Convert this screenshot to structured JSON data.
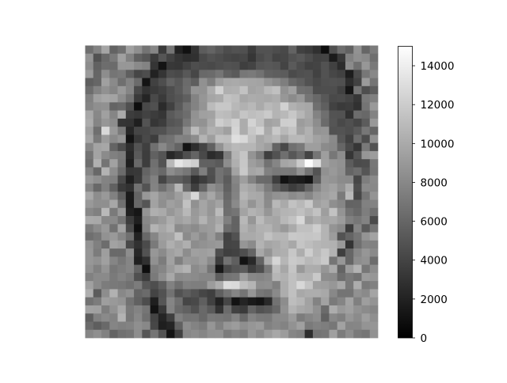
{
  "chart_data": {
    "type": "heatmap",
    "title": "",
    "xlabel": "",
    "ylabel": "",
    "axes_visible": false,
    "colormap": "gray",
    "colormap_colors": [
      "#000000",
      "#ffffff"
    ],
    "grid_size": [
      36,
      36
    ],
    "vmin": 0,
    "vmax": 15000,
    "colorbar": {
      "position": "right",
      "ticks": [
        0,
        2000,
        4000,
        6000,
        8000,
        10000,
        12000,
        14000
      ],
      "tick_labels": [
        "0",
        "2000",
        "4000",
        "6000",
        "8000",
        "10000",
        "12000",
        "14000"
      ]
    },
    "values": [
      [
        6500,
        7700,
        9700,
        5800,
        6600,
        9400,
        8400,
        6800,
        7900,
        3400,
        6900,
        2000,
        1000,
        3000,
        5400,
        5900,
        5200,
        4500,
        4800,
        4700,
        3500,
        4800,
        4800,
        4500,
        4300,
        5800,
        3800,
        3500,
        2800,
        800,
        4700,
        6400,
        5700,
        8600,
        6000,
        7300
      ],
      [
        8700,
        4800,
        6200,
        7200,
        9400,
        7600,
        5700,
        5100,
        3500,
        5000,
        3900,
        3100,
        2700,
        2800,
        4300,
        4800,
        4500,
        4200,
        4000,
        4200,
        3200,
        4400,
        4900,
        4000,
        4200,
        4800,
        5200,
        4500,
        3900,
        4000,
        1600,
        3300,
        7600,
        8400,
        8100,
        6500
      ],
      [
        8300,
        5700,
        6400,
        6300,
        8900,
        8900,
        8100,
        7700,
        3100,
        1200,
        3300,
        3200,
        3900,
        4600,
        4400,
        4300,
        4600,
        4800,
        4700,
        3700,
        4000,
        5000,
        5200,
        5000,
        4000,
        5300,
        4500,
        3900,
        4000,
        4800,
        3800,
        2600,
        8200,
        6600,
        8900,
        7100
      ],
      [
        9100,
        6000,
        8300,
        6900,
        7100,
        5600,
        4100,
        4500,
        2000,
        3100,
        4500,
        4300,
        5200,
        4200,
        6200,
        6300,
        6900,
        5700,
        5300,
        7000,
        7200,
        6700,
        5700,
        5500,
        5400,
        4400,
        4700,
        4800,
        3900,
        4800,
        4200,
        3800,
        1700,
        4400,
        7000,
        8000
      ],
      [
        5600,
        6000,
        9400,
        8100,
        6500,
        7700,
        6300,
        1200,
        3800,
        4600,
        5800,
        5200,
        6300,
        5500,
        8500,
        7400,
        9300,
        9900,
        10000,
        9800,
        9700,
        9600,
        8700,
        8100,
        7400,
        6100,
        5600,
        4800,
        4300,
        4700,
        4800,
        4700,
        2700,
        3900,
        9100,
        6900
      ],
      [
        6400,
        7700,
        8500,
        7800,
        9000,
        7800,
        4300,
        3000,
        3400,
        3800,
        4600,
        5300,
        6400,
        8700,
        8600,
        10100,
        12300,
        10300,
        10400,
        11400,
        9600,
        9800,
        10800,
        11300,
        8600,
        9400,
        6600,
        6400,
        4500,
        4600,
        4600,
        3900,
        1300,
        6800,
        4600,
        5500
      ],
      [
        7600,
        9400,
        9800,
        9600,
        8300,
        6800,
        3400,
        2100,
        4300,
        3400,
        4600,
        5000,
        5600,
        7700,
        8800,
        9700,
        10000,
        11400,
        11100,
        9800,
        10100,
        10000,
        9900,
        10200,
        8900,
        8200,
        8900,
        6900,
        6100,
        5200,
        4300,
        4400,
        4000,
        3200,
        7100,
        7500
      ],
      [
        7800,
        8400,
        8500,
        5900,
        6200,
        4700,
        800,
        4300,
        4700,
        2500,
        3800,
        5300,
        6700,
        7700,
        8700,
        11000,
        11700,
        11700,
        10800,
        10400,
        10800,
        10000,
        10900,
        10500,
        12300,
        10400,
        10000,
        9800,
        6500,
        5600,
        3900,
        3400,
        3600,
        2900,
        6800,
        9000
      ],
      [
        9900,
        8000,
        9400,
        7800,
        10000,
        3600,
        3300,
        3900,
        3500,
        3200,
        5300,
        5900,
        6400,
        8600,
        9400,
        9500,
        11200,
        11000,
        10400,
        11600,
        11200,
        11400,
        11900,
        10600,
        10900,
        11700,
        10700,
        9800,
        7700,
        6500,
        4900,
        4800,
        2900,
        6400,
        6100,
        7700
      ],
      [
        10100,
        7800,
        8800,
        8300,
        3100,
        3000,
        1800,
        4900,
        3200,
        3600,
        5000,
        5300,
        7000,
        8700,
        8600,
        9900,
        12100,
        11500,
        12300,
        10100,
        12400,
        11300,
        9500,
        9800,
        12100,
        12200,
        9200,
        9600,
        8300,
        6300,
        5000,
        4300,
        4700,
        4100,
        5400,
        9000
      ],
      [
        9400,
        6500,
        12700,
        9000,
        7200,
        2300,
        4100,
        4200,
        4700,
        4800,
        5700,
        5800,
        8400,
        11000,
        9300,
        10400,
        10100,
        9400,
        12500,
        10100,
        11700,
        12400,
        10000,
        11800,
        10900,
        11500,
        9500,
        10400,
        8700,
        8800,
        4800,
        4900,
        4600,
        5300,
        7000,
        6000
      ],
      [
        9900,
        7200,
        9100,
        8100,
        8800,
        1200,
        3300,
        4300,
        3600,
        6400,
        6700,
        7700,
        7500,
        8300,
        10600,
        9300,
        11300,
        11200,
        13100,
        12700,
        11300,
        9800,
        10400,
        10900,
        9700,
        10800,
        10900,
        10300,
        9500,
        9100,
        8100,
        5100,
        3800,
        6400,
        4500,
        8500
      ],
      [
        8000,
        9600,
        9800,
        5900,
        4500,
        2700,
        4900,
        3700,
        6600,
        8000,
        6900,
        5900,
        1200,
        2700,
        4000,
        5700,
        8600,
        10300,
        10900,
        10700,
        10700,
        9900,
        9300,
        5900,
        4300,
        6600,
        7100,
        9300,
        9300,
        8200,
        8000,
        6000,
        4400,
        3200,
        7100,
        4900
      ],
      [
        6900,
        9600,
        8200,
        7500,
        7200,
        2300,
        5300,
        3600,
        5700,
        5000,
        2300,
        3100,
        4600,
        5900,
        4300,
        2600,
        3100,
        7400,
        10600,
        11600,
        8700,
        7300,
        3700,
        4800,
        6500,
        5100,
        6100,
        4000,
        6900,
        9300,
        7000,
        8300,
        3200,
        5000,
        8800,
        9200
      ],
      [
        6500,
        10400,
        6800,
        9500,
        7000,
        1800,
        6200,
        3600,
        6600,
        4900,
        10800,
        13500,
        12700,
        12100,
        5700,
        5700,
        5300,
        8300,
        10300,
        11700,
        9300,
        8700,
        6700,
        7800,
        9700,
        10000,
        11900,
        14800,
        13000,
        9400,
        8800,
        8500,
        5400,
        4400,
        4500,
        7000
      ],
      [
        7900,
        6100,
        10500,
        8300,
        6300,
        3200,
        3300,
        5900,
        6800,
        6200,
        8300,
        7600,
        7000,
        5300,
        7400,
        4700,
        6700,
        6100,
        9600,
        11800,
        9700,
        10000,
        7600,
        7100,
        7200,
        7100,
        8600,
        6800,
        4900,
        8500,
        9000,
        8400,
        5900,
        6400,
        5000,
        6900
      ],
      [
        9000,
        8400,
        7700,
        7500,
        4300,
        1800,
        3400,
        6300,
        7600,
        4100,
        5700,
        5600,
        4800,
        2800,
        3600,
        4500,
        6700,
        5400,
        7900,
        9300,
        7700,
        6300,
        6200,
        3700,
        1100,
        1800,
        1600,
        1100,
        5500,
        8900,
        8700,
        8200,
        8100,
        4100,
        7400,
        8100
      ],
      [
        7900,
        6100,
        7500,
        5700,
        3400,
        2900,
        6700,
        4900,
        7700,
        6600,
        7800,
        10700,
        6200,
        3700,
        5900,
        8400,
        7700,
        5700,
        7600,
        10200,
        9700,
        8800,
        7300,
        5500,
        4600,
        3600,
        4200,
        5900,
        7900,
        9100,
        9500,
        8600,
        10100,
        4600,
        8100,
        8000
      ],
      [
        9900,
        8300,
        9000,
        7600,
        5600,
        1600,
        5900,
        8900,
        9700,
        8600,
        8300,
        9300,
        10400,
        12600,
        8700,
        9800,
        8400,
        6100,
        7700,
        10700,
        10000,
        9900,
        8000,
        8600,
        8800,
        8200,
        8600,
        7900,
        9000,
        9400,
        9800,
        7200,
        10900,
        4200,
        6900,
        8700
      ],
      [
        9000,
        8400,
        8400,
        9800,
        6600,
        1500,
        6200,
        5000,
        9500,
        8400,
        9400,
        9000,
        11400,
        8500,
        9700,
        8900,
        9600,
        6400,
        8100,
        10200,
        8700,
        9900,
        8200,
        10800,
        10000,
        11400,
        10800,
        11800,
        9400,
        9900,
        8400,
        7900,
        5800,
        5900,
        7600,
        7700
      ],
      [
        8000,
        7500,
        10900,
        7200,
        9000,
        1900,
        1300,
        8700,
        10300,
        10000,
        8900,
        9600,
        10800,
        9000,
        9700,
        8800,
        11000,
        6500,
        6900,
        9600,
        10500,
        10100,
        8800,
        10100,
        10600,
        10700,
        11300,
        10600,
        11400,
        9300,
        11400,
        8700,
        6700,
        6100,
        7400,
        6500
      ],
      [
        10000,
        9900,
        8000,
        8100,
        6900,
        3500,
        1800,
        8000,
        8600,
        9100,
        10200,
        9400,
        9900,
        9100,
        10500,
        9200,
        9900,
        7500,
        5800,
        10800,
        8800,
        11000,
        9900,
        9700,
        10800,
        11400,
        12700,
        9600,
        10300,
        9700,
        9900,
        9200,
        7500,
        7000,
        7700,
        4400
      ],
      [
        7300,
        8200,
        9000,
        6700,
        9600,
        4400,
        900,
        7700,
        10500,
        9800,
        10500,
        8200,
        8600,
        8200,
        9000,
        9200,
        10400,
        6400,
        5800,
        10400,
        9700,
        10400,
        10500,
        9700,
        9000,
        10000,
        11300,
        11300,
        12100,
        10600,
        8700,
        8100,
        3600,
        7800,
        5300,
        6900
      ],
      [
        6500,
        7000,
        8600,
        9000,
        7900,
        6600,
        2000,
        6100,
        7900,
        9400,
        9600,
        11300,
        8200,
        9100,
        8200,
        9100,
        7600,
        3900,
        4800,
        10000,
        10000,
        10300,
        11400,
        10700,
        10700,
        11800,
        11700,
        11600,
        11700,
        10600,
        9200,
        4900,
        5900,
        6800,
        8700,
        9600
      ],
      [
        8700,
        7500,
        6400,
        9500,
        9200,
        4300,
        2900,
        4400,
        7200,
        9100,
        10300,
        9600,
        10300,
        8300,
        8600,
        8800,
        9000,
        4000,
        4100,
        8800,
        8200,
        10500,
        9700,
        10000,
        10500,
        9900,
        11600,
        11100,
        10700,
        10500,
        10400,
        9000,
        3000,
        6500,
        7700,
        7600
      ],
      [
        8900,
        7300,
        9300,
        6200,
        6200,
        8300,
        2300,
        4800,
        8900,
        8200,
        9400,
        9900,
        8300,
        9400,
        9300,
        9500,
        4600,
        3700,
        3900,
        4600,
        5900,
        9900,
        8700,
        10100,
        10300,
        11700,
        10200,
        12100,
        10800,
        11700,
        10500,
        3700,
        6000,
        7900,
        8800,
        8100
      ],
      [
        8900,
        8500,
        9400,
        7800,
        7000,
        7800,
        1800,
        2800,
        8500,
        7300,
        9500,
        7500,
        9000,
        8800,
        9300,
        8200,
        3600,
        6700,
        5600,
        1100,
        2400,
        5800,
        10200,
        12500,
        10700,
        11900,
        11600,
        10800,
        11200,
        11800,
        6900,
        8900,
        6000,
        8300,
        8600,
        6400
      ],
      [
        8600,
        7600,
        8700,
        7000,
        7400,
        7800,
        5800,
        800,
        7400,
        7900,
        9100,
        10000,
        10500,
        8200,
        8700,
        6900,
        1400,
        4300,
        5000,
        5400,
        3700,
        4600,
        7100,
        11100,
        9800,
        11600,
        9000,
        10200,
        10100,
        8800,
        10000,
        5900,
        9200,
        10500,
        7000,
        8300
      ],
      [
        7600,
        8100,
        8100,
        7200,
        7700,
        7200,
        4700,
        3600,
        7200,
        8400,
        9900,
        8100,
        8300,
        8200,
        7900,
        7900,
        5500,
        6800,
        7000,
        9300,
        8000,
        7800,
        8100,
        10700,
        10400,
        11300,
        10600,
        10500,
        11800,
        8300,
        8200,
        6400,
        7200,
        6700,
        9100,
        8900
      ],
      [
        9400,
        8100,
        7300,
        7100,
        7000,
        6600,
        7300,
        5100,
        4600,
        5600,
        7600,
        6500,
        7600,
        7400,
        7400,
        9200,
        10200,
        13000,
        12800,
        11200,
        10600,
        8300,
        8400,
        7500,
        10200,
        11300,
        12700,
        11500,
        9400,
        9300,
        8900,
        9800,
        7100,
        10200,
        7200,
        7600
      ],
      [
        10300,
        5400,
        8300,
        10400,
        8000,
        8500,
        5900,
        6300,
        4000,
        4800,
        6700,
        4800,
        5500,
        4900,
        4100,
        3700,
        5600,
        6800,
        7800,
        6900,
        8800,
        7000,
        6700,
        8100,
        10200,
        11300,
        9900,
        10200,
        10200,
        9900,
        8000,
        6800,
        6800,
        8500,
        8100,
        9700
      ],
      [
        6700,
        7300,
        9300,
        9000,
        8700,
        6700,
        5700,
        4500,
        1800,
        5000,
        7800,
        6500,
        4100,
        4300,
        5600,
        3800,
        2000,
        4100,
        1100,
        2100,
        1500,
        1200,
        2400,
        6700,
        8300,
        11100,
        10700,
        9500,
        7700,
        9500,
        7200,
        7800,
        9600,
        7500,
        9300,
        8700
      ],
      [
        9500,
        9400,
        7400,
        8600,
        9900,
        7100,
        7700,
        6900,
        1100,
        3300,
        7700,
        6200,
        5700,
        4800,
        6200,
        5300,
        3000,
        6300,
        3800,
        3400,
        5800,
        4800,
        5200,
        6100,
        8600,
        10500,
        9900,
        9600,
        8500,
        6300,
        10100,
        9000,
        9400,
        8600,
        8200,
        7900
      ],
      [
        5600,
        7600,
        8100,
        7700,
        10500,
        7000,
        8000,
        6600,
        4000,
        2100,
        3700,
        7500,
        6800,
        6900,
        6100,
        7100,
        7000,
        6800,
        7700,
        6100,
        7700,
        7200,
        7100,
        8100,
        8200,
        9100,
        7300,
        7900,
        8300,
        5700,
        8000,
        7500,
        8800,
        8200,
        9300,
        8400
      ],
      [
        6300,
        5500,
        6200,
        7800,
        7500,
        7700,
        8400,
        8000,
        4200,
        1800,
        2200,
        5700,
        8300,
        7700,
        7300,
        8800,
        7600,
        8800,
        9200,
        8400,
        8800,
        9100,
        7600,
        8000,
        7700,
        8600,
        9400,
        7200,
        7600,
        7400,
        7000,
        9500,
        7800,
        7900,
        8700,
        8800
      ],
      [
        7900,
        8400,
        7600,
        5800,
        6600,
        6800,
        8300,
        5000,
        6900,
        4900,
        1200,
        3800,
        8000,
        8300,
        7900,
        8500,
        8600,
        7300,
        7800,
        7400,
        8900,
        8200,
        9100,
        9800,
        9200,
        7900,
        7600,
        2700,
        6800,
        7000,
        9400,
        7300,
        8300,
        7200,
        6900,
        8600
      ]
    ]
  }
}
